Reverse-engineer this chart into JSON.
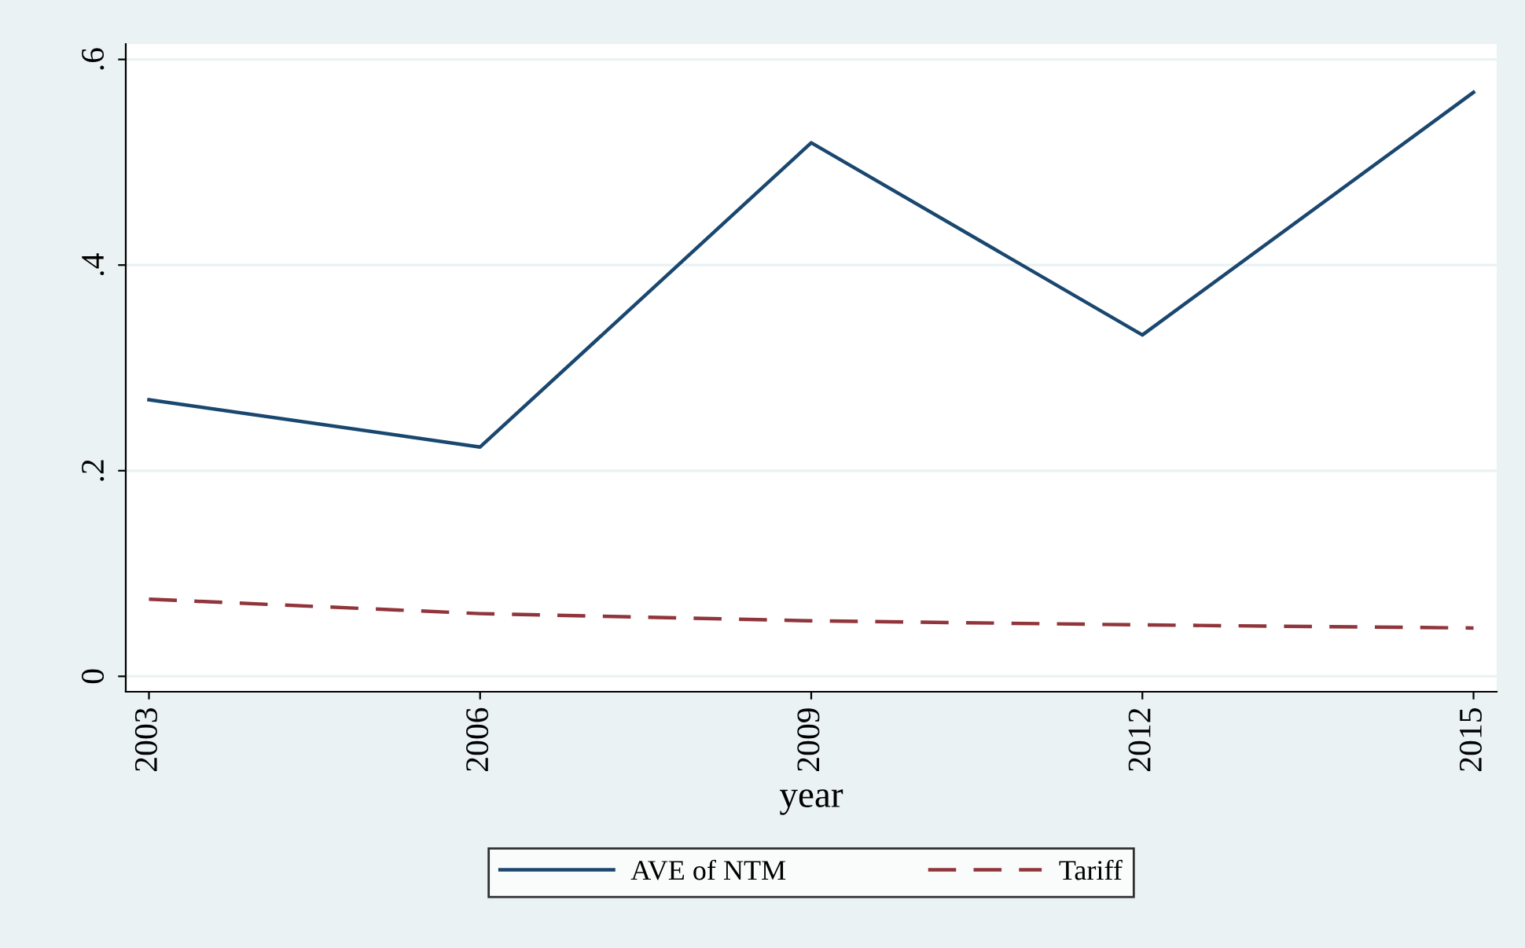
{
  "chart_data": {
    "type": "line",
    "xlabel": "year",
    "x": [
      2003,
      2006,
      2009,
      2012,
      2015
    ],
    "series": [
      {
        "name": "AVE of NTM",
        "color": "#1a476f",
        "values": [
          0.269,
          0.223,
          0.519,
          0.332,
          0.568
        ],
        "line_style": "solid"
      },
      {
        "name": "Tariff",
        "color": "#90353b",
        "values": [
          0.075,
          0.061,
          0.054,
          0.05,
          0.047
        ],
        "line_style": "dashed"
      }
    ],
    "xlim": [
      2002.79,
      2015.21
    ],
    "xticks": [
      2003,
      2006,
      2009,
      2012,
      2015
    ],
    "ylim": [
      -0.015,
      0.615
    ],
    "yticks": [
      {
        "value": 0,
        "label": "0"
      },
      {
        "value": 0.2,
        "label": ".2"
      },
      {
        "value": 0.4,
        "label": ".4"
      },
      {
        "value": 0.6,
        "label": ".6"
      }
    ],
    "grid": "y",
    "legend": "bottom",
    "marker": "none"
  }
}
